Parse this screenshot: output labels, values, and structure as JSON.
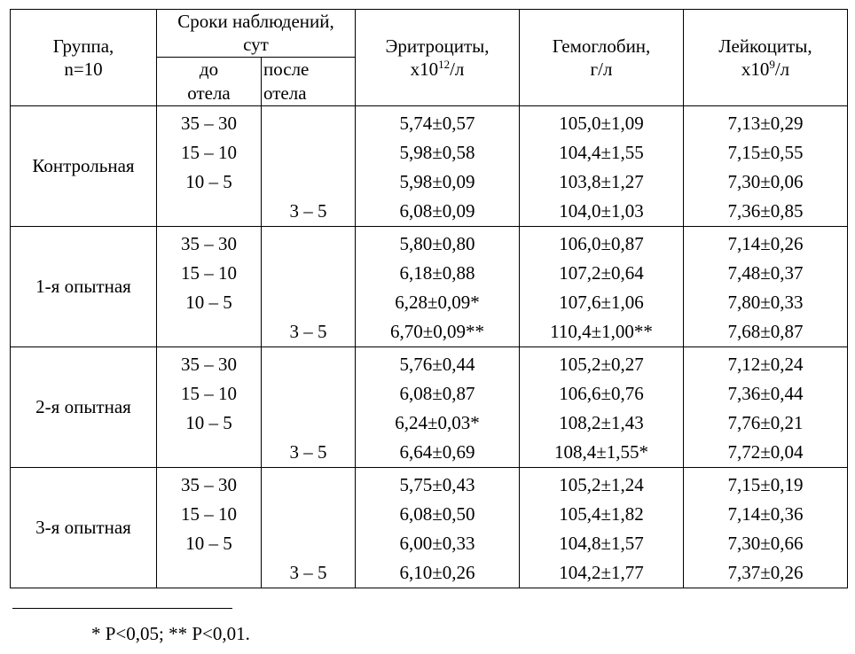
{
  "header": {
    "group": [
      "Группа,",
      "n=10"
    ],
    "period": "Сроки наблюдений, сут",
    "before": [
      "до",
      "отела"
    ],
    "after": [
      "после",
      "отела"
    ],
    "ery": {
      "line1": "Эритроциты,",
      "pre": "х10",
      "sup": "12",
      "post": "/л"
    },
    "hgb": [
      "Гемоглобин,",
      "г/л"
    ],
    "leu": {
      "line1": "Лейкоциты,",
      "pre": "х10",
      "sup": "9",
      "post": "/л"
    }
  },
  "groups": [
    {
      "name": "Контрольная",
      "rows": [
        {
          "before": "35 – 30",
          "after": "",
          "ery": "5,74±0,57",
          "hgb": "105,0±1,09",
          "leu": "7,13±0,29"
        },
        {
          "before": "15 – 10",
          "after": "",
          "ery": "5,98±0,58",
          "hgb": "104,4±1,55",
          "leu": "7,15±0,55"
        },
        {
          "before": "10 – 5",
          "after": "",
          "ery": "5,98±0,09",
          "hgb": "103,8±1,27",
          "leu": "7,30±0,06"
        },
        {
          "before": "",
          "after": "3 – 5",
          "ery": "6,08±0,09",
          "hgb": "104,0±1,03",
          "leu": "7,36±0,85"
        }
      ]
    },
    {
      "name": "1-я опытная",
      "rows": [
        {
          "before": "35 – 30",
          "after": "",
          "ery": "5,80±0,80",
          "hgb": "106,0±0,87",
          "leu": "7,14±0,26"
        },
        {
          "before": "15 – 10",
          "after": "",
          "ery": "6,18±0,88",
          "hgb": "107,2±0,64",
          "leu": "7,48±0,37"
        },
        {
          "before": "10 – 5",
          "after": "",
          "ery": "6,28±0,09*",
          "hgb": "107,6±1,06",
          "leu": "7,80±0,33"
        },
        {
          "before": "",
          "after": "3 – 5",
          "ery": "6,70±0,09**",
          "hgb": "110,4±1,00**",
          "leu": "7,68±0,87"
        }
      ]
    },
    {
      "name": "2-я опытная",
      "rows": [
        {
          "before": "35 – 30",
          "after": "",
          "ery": "5,76±0,44",
          "hgb": "105,2±0,27",
          "leu": "7,12±0,24"
        },
        {
          "before": "15 – 10",
          "after": "",
          "ery": "6,08±0,87",
          "hgb": "106,6±0,76",
          "leu": "7,36±0,44"
        },
        {
          "before": "10 – 5",
          "after": "",
          "ery": "6,24±0,03*",
          "hgb": "108,2±1,43",
          "leu": "7,76±0,21"
        },
        {
          "before": "",
          "after": "3 – 5",
          "ery": "6,64±0,69",
          "hgb": "108,4±1,55*",
          "leu": "7,72±0,04"
        }
      ]
    },
    {
      "name": "3-я опытная",
      "rows": [
        {
          "before": "35 – 30",
          "after": "",
          "ery": "5,75±0,43",
          "hgb": "105,2±1,24",
          "leu": "7,15±0,19"
        },
        {
          "before": "15 – 10",
          "after": "",
          "ery": "6,08±0,50",
          "hgb": "105,4±1,82",
          "leu": "7,14±0,36"
        },
        {
          "before": "10 – 5",
          "after": "",
          "ery": "6,00±0,33",
          "hgb": "104,8±1,57",
          "leu": "7,30±0,66"
        },
        {
          "before": "",
          "after": "3 – 5",
          "ery": "6,10±0,26",
          "hgb": "104,2±1,77",
          "leu": "7,37±0,26"
        }
      ]
    }
  ],
  "footnote": "* P<0,05; ** P<0,01."
}
